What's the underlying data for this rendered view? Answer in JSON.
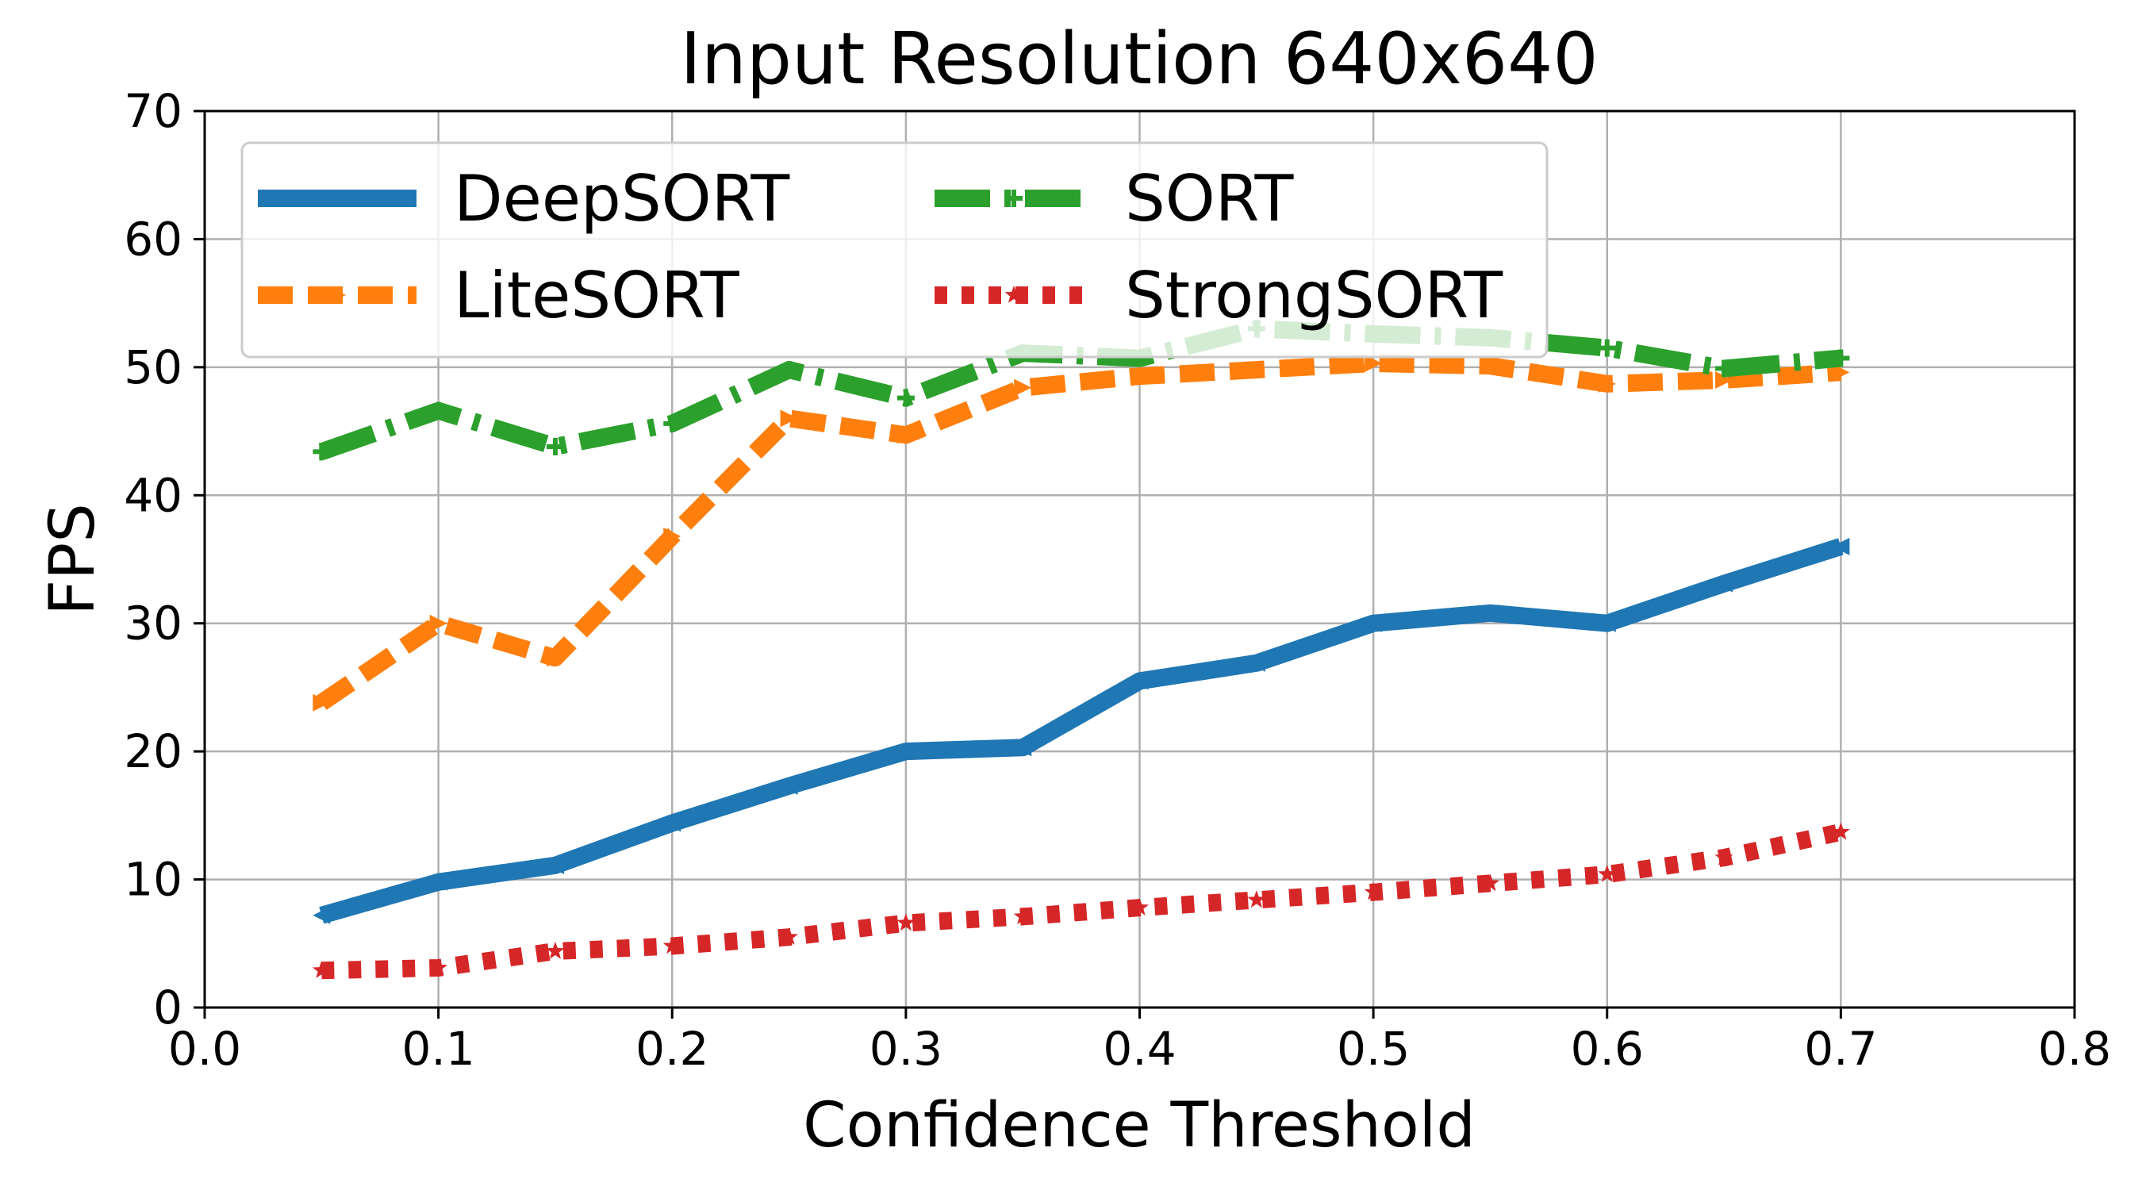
{
  "chart_data": {
    "type": "line",
    "title": "Input Resolution 640x640",
    "xlabel": "Confidence Threshold",
    "ylabel": "FPS",
    "xlim": [
      0.0,
      0.8
    ],
    "ylim": [
      0,
      70
    ],
    "xticks": [
      0.0,
      0.1,
      0.2,
      0.3,
      0.4,
      0.5,
      0.6,
      0.7,
      0.8
    ],
    "xtick_labels": [
      "0.0",
      "0.1",
      "0.2",
      "0.3",
      "0.4",
      "0.5",
      "0.6",
      "0.7",
      "0.8"
    ],
    "yticks": [
      0,
      10,
      20,
      30,
      40,
      50,
      60,
      70
    ],
    "ytick_labels": [
      "0",
      "10",
      "20",
      "30",
      "40",
      "50",
      "60",
      "70"
    ],
    "grid": true,
    "legend_position": "top-left",
    "x": [
      0.05,
      0.1,
      0.15,
      0.2,
      0.25,
      0.3,
      0.35,
      0.4,
      0.45,
      0.5,
      0.55,
      0.6,
      0.65,
      0.7
    ],
    "series": [
      {
        "name": "DeepSORT",
        "color": "#1f77b4",
        "style": "solid",
        "marker": "tri-left",
        "values": [
          7.2,
          9.8,
          11.1,
          14.4,
          17.3,
          20.0,
          20.3,
          25.5,
          26.9,
          30.0,
          30.8,
          30.0,
          33.1,
          36.0
        ]
      },
      {
        "name": "LiteSORT",
        "color": "#ff7f0e",
        "style": "dashed",
        "marker": "tri-right",
        "values": [
          23.8,
          30.0,
          27.3,
          36.8,
          46.0,
          44.7,
          48.4,
          49.3,
          49.8,
          50.3,
          50.1,
          48.7,
          49.0,
          49.6
        ]
      },
      {
        "name": "SORT",
        "color": "#2ca02c",
        "style": "dashdot",
        "marker": "plus",
        "values": [
          43.4,
          46.6,
          43.8,
          45.6,
          49.8,
          47.6,
          51.1,
          50.7,
          53.0,
          52.6,
          52.3,
          51.5,
          49.9,
          50.7
        ]
      },
      {
        "name": "StrongSORT",
        "color": "#d62728",
        "style": "dotted",
        "marker": "star",
        "values": [
          2.9,
          3.1,
          4.4,
          4.8,
          5.5,
          6.6,
          7.1,
          7.8,
          8.4,
          9.0,
          9.7,
          10.4,
          11.7,
          13.7
        ]
      }
    ]
  }
}
